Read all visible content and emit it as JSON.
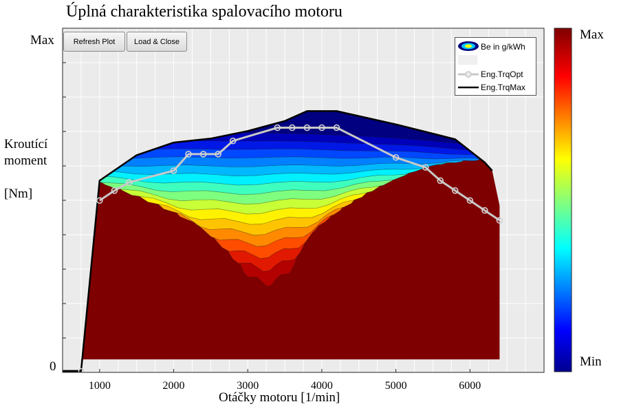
{
  "chart_data": {
    "type": "contour",
    "title": "Úplná charakteristika spalovacího motoru",
    "xlabel": "Otáčky motoru [1/min]",
    "ylabel_lines": [
      "Kroutící",
      "moment",
      "",
      "[Nm]"
    ],
    "xlim": [
      500,
      7000
    ],
    "x_ticks": [
      1000,
      2000,
      3000,
      4000,
      5000,
      6000
    ],
    "y_tick_labels": {
      "min": "0",
      "max": "Max"
    },
    "colorbar": {
      "min_label": "Min",
      "max_label": "Max",
      "colormap": "jet"
    },
    "grid": true,
    "legend_placement": "top-right",
    "legend": [
      {
        "label": "Be in g/kWh",
        "marker": "contour-ellipse"
      },
      {
        "label": "Eng.TrqOpt",
        "color": "#c8c8c8",
        "marker": "circle"
      },
      {
        "label": "Eng.TrqMax",
        "color": "#000000"
      }
    ],
    "series": [
      {
        "name": "Eng.TrqMax",
        "color": "#000000",
        "rpm": [
          500,
          750,
          1000,
          1500,
          2000,
          2500,
          3000,
          3500,
          3800,
          4200,
          5000,
          5800,
          6200,
          6300
        ],
        "torque_frac": [
          0,
          0,
          0.575,
          0.652,
          0.69,
          0.702,
          0.725,
          0.755,
          0.785,
          0.785,
          0.745,
          0.7,
          0.63,
          0.605
        ]
      },
      {
        "name": "Eng.TrqOpt",
        "color": "#c8c8c8",
        "rpm": [
          1000,
          1200,
          1400,
          2000,
          2200,
          2400,
          2600,
          2800,
          3400,
          3600,
          3800,
          4000,
          4200,
          5000,
          5400,
          5600,
          5800,
          6000,
          6200,
          6400
        ],
        "torque_frac": [
          0.515,
          0.545,
          0.57,
          0.605,
          0.655,
          0.655,
          0.655,
          0.695,
          0.735,
          0.735,
          0.735,
          0.735,
          0.735,
          0.645,
          0.615,
          0.575,
          0.545,
          0.515,
          0.485,
          0.455
        ]
      }
    ]
  },
  "ui": {
    "buttons": {
      "refresh": "Refresh Plot",
      "load_close": "Load & Close"
    }
  },
  "colors": {
    "plot_bg": "#ebebeb",
    "contour_levels": [
      "#7f0000",
      "#b30000",
      "#e11900",
      "#ff4d00",
      "#ff8a00",
      "#ffc400",
      "#fff200",
      "#c8ff37",
      "#7fff7f",
      "#3fffbf",
      "#00f0ff",
      "#00b8ff",
      "#0080ff",
      "#0048ff",
      "#0018e6",
      "#0000b8",
      "#000080"
    ]
  }
}
